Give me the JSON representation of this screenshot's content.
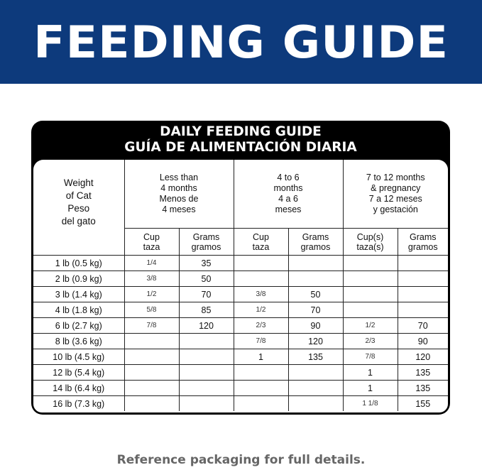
{
  "banner": {
    "title": "FEEDING GUIDE",
    "color": "#0d3a7c"
  },
  "card": {
    "title_en": "DAILY FEEDING GUIDE",
    "title_es": "GUÍA DE ALIMENTACIÓN DIARIA"
  },
  "table": {
    "weight_header": {
      "en1": "Weight",
      "en2": "of Cat",
      "es1": "Peso",
      "es2": "del gato"
    },
    "groups": [
      {
        "lines": [
          "Less than",
          "4 months",
          "Menos de",
          "4 meses"
        ]
      },
      {
        "lines": [
          "4 to 6",
          "months",
          "4 a 6",
          "meses"
        ]
      },
      {
        "lines": [
          "7 to 12 months",
          "& pregnancy",
          "7 a 12 meses",
          "y gestación"
        ]
      }
    ],
    "subheaders": [
      {
        "en": "Cup",
        "es": "taza"
      },
      {
        "en": "Grams",
        "es": "gramos"
      },
      {
        "en": "Cup",
        "es": "taza"
      },
      {
        "en": "Grams",
        "es": "gramos"
      },
      {
        "en": "Cup(s)",
        "es": "taza(s)"
      },
      {
        "en": "Grams",
        "es": "gramos"
      }
    ],
    "rows": [
      [
        "1 lb (0.5 kg)",
        "1/4",
        "35",
        "",
        "",
        "",
        ""
      ],
      [
        "2 lb (0.9 kg)",
        "3/8",
        "50",
        "",
        "",
        "",
        ""
      ],
      [
        "3 lb (1.4 kg)",
        "1/2",
        "70",
        "3/8",
        "50",
        "",
        ""
      ],
      [
        "4 lb (1.8 kg)",
        "5/8",
        "85",
        "1/2",
        "70",
        "",
        ""
      ],
      [
        "6 lb (2.7 kg)",
        "7/8",
        "120",
        "2/3",
        "90",
        "1/2",
        "70"
      ],
      [
        "8 lb (3.6 kg)",
        "",
        "",
        "7/8",
        "120",
        "2/3",
        "90"
      ],
      [
        "10 lb (4.5 kg)",
        "",
        "",
        "1",
        "135",
        "7/8",
        "120"
      ],
      [
        "12 lb (5.4 kg)",
        "",
        "",
        "",
        "",
        "1",
        "135"
      ],
      [
        "14 lb (6.4 kg)",
        "",
        "",
        "",
        "",
        "1",
        "135"
      ],
      [
        "16 lb (7.3 kg)",
        "",
        "",
        "",
        "",
        "1 1/8",
        "155"
      ]
    ]
  },
  "footer": {
    "text": "Reference packaging for full details."
  }
}
